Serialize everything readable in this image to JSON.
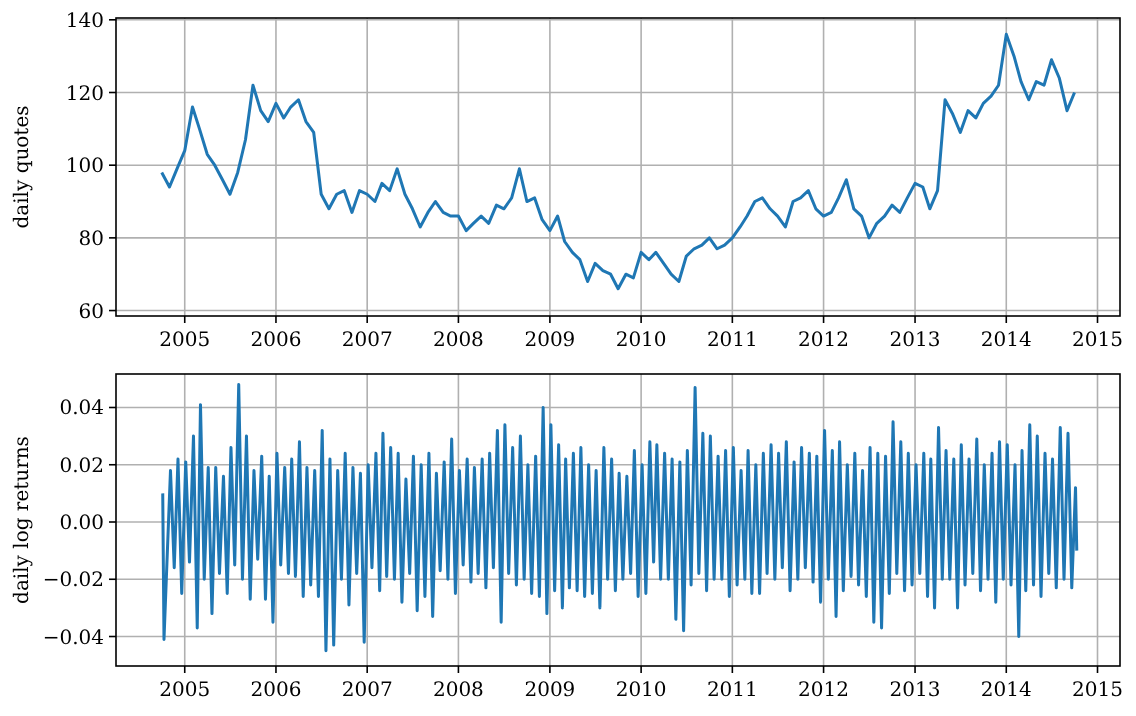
{
  "chart_data": [
    {
      "type": "line",
      "ylabel": "daily quotes",
      "xlim": [
        "2004-04",
        "2015-04"
      ],
      "xticks": [
        "2005",
        "2006",
        "2007",
        "2008",
        "2009",
        "2010",
        "2011",
        "2012",
        "2013",
        "2014",
        "2015"
      ],
      "ylim": [
        58.5,
        140.5
      ],
      "yticks": [
        60,
        80,
        100,
        120,
        140
      ],
      "grid": true,
      "x": [
        "2004-10",
        "2004-11",
        "2004-12",
        "2005-01",
        "2005-02",
        "2005-03",
        "2005-04",
        "2005-05",
        "2005-06",
        "2005-07",
        "2005-08",
        "2005-09",
        "2005-10",
        "2005-11",
        "2005-12",
        "2006-01",
        "2006-02",
        "2006-03",
        "2006-04",
        "2006-05",
        "2006-06",
        "2006-07",
        "2006-08",
        "2006-09",
        "2006-10",
        "2006-11",
        "2006-12",
        "2007-01",
        "2007-02",
        "2007-03",
        "2007-04",
        "2007-05",
        "2007-06",
        "2007-07",
        "2007-08",
        "2007-09",
        "2007-10",
        "2007-11",
        "2007-12",
        "2008-01",
        "2008-02",
        "2008-03",
        "2008-04",
        "2008-05",
        "2008-06",
        "2008-07",
        "2008-08",
        "2008-09",
        "2008-10",
        "2008-11",
        "2008-12",
        "2009-01",
        "2009-02",
        "2009-03",
        "2009-04",
        "2009-05",
        "2009-06",
        "2009-07",
        "2009-08",
        "2009-09",
        "2009-10",
        "2009-11",
        "2009-12",
        "2010-01",
        "2010-02",
        "2010-03",
        "2010-04",
        "2010-05",
        "2010-06",
        "2010-07",
        "2010-08",
        "2010-09",
        "2010-10",
        "2010-11",
        "2010-12",
        "2011-01",
        "2011-02",
        "2011-03",
        "2011-04",
        "2011-05",
        "2011-06",
        "2011-07",
        "2011-08",
        "2011-09",
        "2011-10",
        "2011-11",
        "2011-12",
        "2012-01",
        "2012-02",
        "2012-03",
        "2012-04",
        "2012-05",
        "2012-06",
        "2012-07",
        "2012-08",
        "2012-09",
        "2012-10",
        "2012-11",
        "2012-12",
        "2013-01",
        "2013-02",
        "2013-03",
        "2013-04",
        "2013-05",
        "2013-06",
        "2013-07",
        "2013-08",
        "2013-09",
        "2013-10",
        "2013-11",
        "2013-12",
        "2014-01",
        "2014-02",
        "2014-03",
        "2014-04",
        "2014-05",
        "2014-06",
        "2014-07",
        "2014-08",
        "2014-09",
        "2014-10"
      ],
      "series": [
        {
          "color": "#1f77b4",
          "values": [
            98,
            94,
            99,
            104,
            116,
            110,
            103,
            100,
            96,
            92,
            98,
            107,
            122,
            115,
            112,
            117,
            113,
            116,
            118,
            112,
            109,
            92,
            88,
            92,
            93,
            87,
            93,
            92,
            90,
            95,
            93,
            99,
            92,
            88,
            83,
            87,
            90,
            87,
            86,
            86,
            82,
            84,
            86,
            84,
            89,
            88,
            91,
            99,
            90,
            91,
            85,
            82,
            86,
            79,
            76,
            74,
            68,
            73,
            71,
            70,
            66,
            70,
            69,
            76,
            74,
            76,
            73,
            70,
            68,
            75,
            77,
            78,
            80,
            77,
            78,
            80,
            83,
            86,
            90,
            91,
            88,
            86,
            83,
            90,
            91,
            93,
            88,
            86,
            87,
            91,
            96,
            88,
            86,
            80,
            84,
            86,
            89,
            87,
            91,
            95,
            94,
            88,
            93,
            118,
            114,
            109,
            115,
            113,
            117,
            119,
            122,
            136,
            130,
            123,
            118,
            123,
            122,
            129,
            124,
            115,
            120
          ]
        }
      ]
    },
    {
      "type": "line",
      "ylabel": "daily log returns",
      "xlim": [
        "2004-04",
        "2015-04"
      ],
      "xticks": [
        "2005",
        "2006",
        "2007",
        "2008",
        "2009",
        "2010",
        "2011",
        "2012",
        "2013",
        "2014",
        "2015"
      ],
      "ylim": [
        -0.0503,
        0.0517
      ],
      "yticks": [
        {
          "value": -0.04,
          "label": "−0.04"
        },
        {
          "value": -0.02,
          "label": "−0.02"
        },
        {
          "value": 0,
          "label": "0.00"
        },
        {
          "value": 0.02,
          "label": "0.02"
        },
        {
          "value": 0.04,
          "label": "0.04"
        }
      ],
      "grid": true,
      "x": [
        "2004-10-05",
        "2004-10-10",
        "2004-11-05",
        "2004-11-20",
        "2004-12-05",
        "2004-12-20",
        "2005-01-05",
        "2005-01-20",
        "2005-02-05",
        "2005-02-20",
        "2005-03-05",
        "2005-03-20",
        "2005-04-05",
        "2005-04-20",
        "2005-05-05",
        "2005-05-20",
        "2005-06-05",
        "2005-06-20",
        "2005-07-05",
        "2005-07-20",
        "2005-08-05",
        "2005-08-20",
        "2005-09-05",
        "2005-09-20",
        "2005-10-05",
        "2005-10-20",
        "2005-11-05",
        "2005-11-20",
        "2005-12-05",
        "2005-12-20",
        "2006-01-05",
        "2006-01-20",
        "2006-02-05",
        "2006-02-20",
        "2006-03-05",
        "2006-03-20",
        "2006-04-05",
        "2006-04-20",
        "2006-05-05",
        "2006-05-20",
        "2006-06-05",
        "2006-06-20",
        "2006-07-05",
        "2006-07-20",
        "2006-08-05",
        "2006-08-20",
        "2006-09-05",
        "2006-09-20",
        "2006-10-05",
        "2006-10-20",
        "2006-11-05",
        "2006-11-20",
        "2006-12-05",
        "2006-12-20",
        "2007-01-05",
        "2007-01-20",
        "2007-02-05",
        "2007-02-20",
        "2007-03-05",
        "2007-03-20",
        "2007-04-05",
        "2007-04-20",
        "2007-05-05",
        "2007-05-20",
        "2007-06-05",
        "2007-06-20",
        "2007-07-05",
        "2007-07-20",
        "2007-08-05",
        "2007-08-20",
        "2007-09-05",
        "2007-09-20",
        "2007-10-05",
        "2007-10-20",
        "2007-11-05",
        "2007-11-20",
        "2007-12-05",
        "2007-12-20",
        "2008-01-05",
        "2008-01-20",
        "2008-02-05",
        "2008-02-20",
        "2008-03-05",
        "2008-03-20",
        "2008-04-05",
        "2008-04-20",
        "2008-05-05",
        "2008-05-20",
        "2008-06-05",
        "2008-06-20",
        "2008-07-05",
        "2008-07-20",
        "2008-08-05",
        "2008-08-20",
        "2008-09-05",
        "2008-09-20",
        "2008-10-05",
        "2008-10-20",
        "2008-11-05",
        "2008-11-20",
        "2008-12-05",
        "2008-12-20",
        "2009-01-05",
        "2009-01-20",
        "2009-02-05",
        "2009-02-20",
        "2009-03-05",
        "2009-03-20",
        "2009-04-05",
        "2009-04-20",
        "2009-05-05",
        "2009-05-20",
        "2009-06-05",
        "2009-06-20",
        "2009-07-05",
        "2009-07-20",
        "2009-08-05",
        "2009-08-20",
        "2009-09-05",
        "2009-09-20",
        "2009-10-05",
        "2009-10-20",
        "2009-11-05",
        "2009-11-20",
        "2009-12-05",
        "2009-12-20",
        "2010-01-05",
        "2010-01-20",
        "2010-02-05",
        "2010-02-20",
        "2010-03-05",
        "2010-03-20",
        "2010-04-05",
        "2010-04-20",
        "2010-05-05",
        "2010-05-20",
        "2010-06-05",
        "2010-06-20",
        "2010-07-05",
        "2010-07-20",
        "2010-08-05",
        "2010-08-20",
        "2010-09-05",
        "2010-09-20",
        "2010-10-05",
        "2010-10-20",
        "2010-11-05",
        "2010-11-20",
        "2010-12-05",
        "2010-12-20",
        "2011-01-05",
        "2011-01-20",
        "2011-02-05",
        "2011-02-20",
        "2011-03-05",
        "2011-03-20",
        "2011-04-05",
        "2011-04-20",
        "2011-05-05",
        "2011-05-20",
        "2011-06-05",
        "2011-06-20",
        "2011-07-05",
        "2011-07-20",
        "2011-08-05",
        "2011-08-20",
        "2011-09-05",
        "2011-09-20",
        "2011-10-05",
        "2011-10-20",
        "2011-11-05",
        "2011-11-20",
        "2011-12-05",
        "2011-12-20",
        "2012-01-05",
        "2012-01-20",
        "2012-02-05",
        "2012-02-20",
        "2012-03-05",
        "2012-03-20",
        "2012-04-05",
        "2012-04-20",
        "2012-05-05",
        "2012-05-20",
        "2012-06-05",
        "2012-06-20",
        "2012-07-05",
        "2012-07-20",
        "2012-08-05",
        "2012-08-20",
        "2012-09-05",
        "2012-09-20",
        "2012-10-05",
        "2012-10-20",
        "2012-11-05",
        "2012-11-20",
        "2012-12-05",
        "2012-12-20",
        "2013-01-05",
        "2013-01-20",
        "2013-02-05",
        "2013-02-20",
        "2013-03-05",
        "2013-03-20",
        "2013-04-05",
        "2013-04-20",
        "2013-05-05",
        "2013-05-20",
        "2013-06-05",
        "2013-06-20",
        "2013-07-05",
        "2013-07-20",
        "2013-08-05",
        "2013-08-20",
        "2013-09-05",
        "2013-09-20",
        "2013-10-05",
        "2013-10-20",
        "2013-11-05",
        "2013-11-20",
        "2013-12-05",
        "2013-12-20",
        "2014-01-05",
        "2014-01-20",
        "2014-02-05",
        "2014-02-20",
        "2014-03-05",
        "2014-03-20",
        "2014-04-05",
        "2014-04-20",
        "2014-05-05",
        "2014-05-20",
        "2014-06-05",
        "2014-06-20",
        "2014-07-05",
        "2014-07-20",
        "2014-08-05",
        "2014-08-20",
        "2014-09-05",
        "2014-09-20",
        "2014-10-05",
        "2014-10-10"
      ],
      "series": [
        {
          "color": "#1f77b4",
          "values": [
            0.01,
            -0.041,
            0.018,
            -0.016,
            0.022,
            -0.025,
            0.021,
            -0.014,
            0.03,
            -0.037,
            0.041,
            -0.02,
            0.019,
            -0.032,
            0.019,
            -0.018,
            0.016,
            -0.025,
            0.026,
            -0.015,
            0.048,
            -0.02,
            0.03,
            -0.027,
            0.018,
            -0.013,
            0.023,
            -0.027,
            0.016,
            -0.035,
            0.024,
            -0.015,
            0.019,
            -0.018,
            0.022,
            -0.019,
            0.028,
            -0.026,
            0.019,
            -0.022,
            0.018,
            -0.026,
            0.032,
            -0.045,
            0.022,
            -0.043,
            0.018,
            -0.02,
            0.024,
            -0.029,
            0.019,
            -0.018,
            0.017,
            -0.042,
            0.02,
            -0.016,
            0.024,
            -0.024,
            0.031,
            -0.019,
            0.026,
            -0.02,
            0.024,
            -0.028,
            0.015,
            -0.018,
            0.023,
            -0.031,
            0.02,
            -0.026,
            0.024,
            -0.033,
            0.017,
            -0.017,
            0.021,
            -0.02,
            0.029,
            -0.025,
            0.018,
            -0.015,
            0.022,
            -0.021,
            0.019,
            -0.018,
            0.022,
            -0.023,
            0.024,
            -0.016,
            0.032,
            -0.035,
            0.034,
            -0.018,
            0.026,
            -0.022,
            0.03,
            -0.02,
            0.02,
            -0.025,
            0.023,
            -0.026,
            0.04,
            -0.032,
            0.034,
            -0.024,
            0.027,
            -0.03,
            0.022,
            -0.023,
            0.024,
            -0.024,
            0.026,
            -0.026,
            0.02,
            -0.025,
            0.018,
            -0.03,
            0.026,
            -0.02,
            0.022,
            -0.024,
            0.017,
            -0.02,
            0.016,
            -0.018,
            0.025,
            -0.026,
            0.02,
            -0.025,
            0.028,
            -0.014,
            0.027,
            -0.02,
            0.024,
            -0.02,
            0.022,
            -0.034,
            0.021,
            -0.038,
            0.025,
            -0.022,
            0.047,
            -0.018,
            0.031,
            -0.024,
            0.03,
            -0.02,
            0.023,
            -0.02,
            0.025,
            -0.026,
            0.026,
            -0.022,
            0.018,
            -0.02,
            0.025,
            -0.025,
            0.02,
            -0.025,
            0.024,
            -0.018,
            0.027,
            -0.02,
            0.024,
            -0.016,
            0.028,
            -0.024,
            0.021,
            -0.02,
            0.026,
            -0.016,
            0.024,
            -0.021,
            0.023,
            -0.028,
            0.032,
            -0.02,
            0.025,
            -0.033,
            0.028,
            -0.024,
            0.02,
            -0.019,
            0.024,
            -0.022,
            0.018,
            -0.026,
            0.026,
            -0.035,
            0.024,
            -0.037,
            0.023,
            -0.025,
            0.035,
            -0.018,
            0.028,
            -0.024,
            0.024,
            -0.022,
            0.02,
            -0.018,
            0.024,
            -0.026,
            0.022,
            -0.03,
            0.033,
            -0.02,
            0.025,
            -0.02,
            0.022,
            -0.03,
            0.027,
            -0.022,
            0.022,
            -0.018,
            0.029,
            -0.024,
            0.02,
            -0.02,
            0.024,
            -0.028,
            0.028,
            -0.02,
            0.027,
            -0.022,
            0.02,
            -0.04,
            0.025,
            -0.024,
            0.034,
            -0.022,
            0.03,
            -0.026,
            0.024,
            -0.018,
            0.022,
            -0.023,
            0.033,
            -0.02,
            0.031,
            -0.023,
            0.012,
            -0.01
          ]
        }
      ]
    }
  ]
}
